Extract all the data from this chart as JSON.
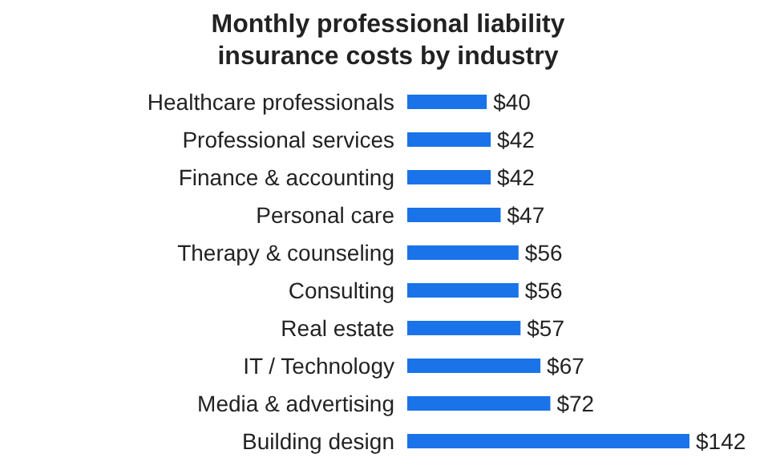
{
  "chart_data": {
    "type": "bar",
    "orientation": "horizontal",
    "title": "Monthly professional liability insurance costs by industry",
    "categories": [
      "Healthcare professionals",
      "Professional services",
      "Finance & accounting",
      "Personal care",
      "Therapy & counseling",
      "Consulting",
      "Real estate",
      "IT / Technology",
      "Media & advertising",
      "Building design"
    ],
    "values": [
      40,
      42,
      42,
      47,
      56,
      56,
      57,
      67,
      72,
      142
    ],
    "value_labels": [
      "$40",
      "$42",
      "$42",
      "$47",
      "$56",
      "$56",
      "$57",
      "$67",
      "$72",
      "$142"
    ],
    "color": "#1a73e8"
  }
}
